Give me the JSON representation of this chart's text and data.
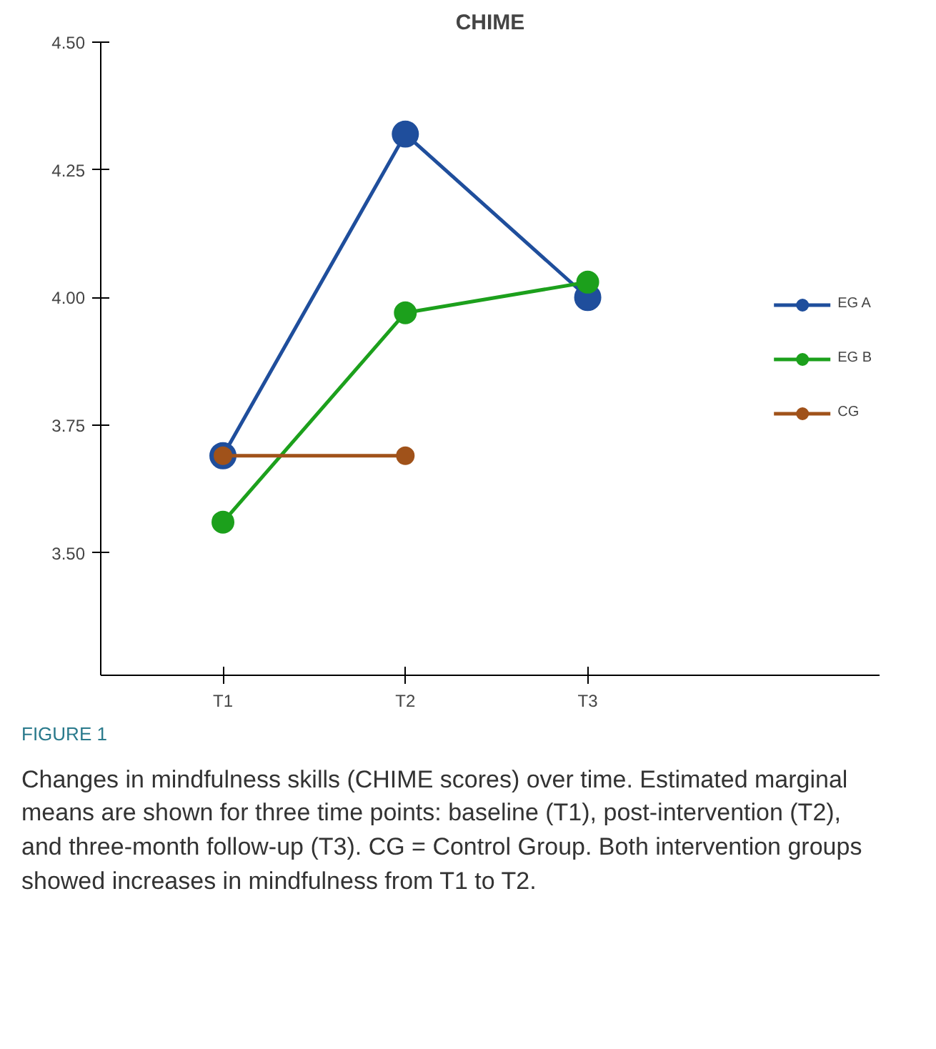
{
  "chart_data": {
    "type": "line",
    "title": "CHIME",
    "categories": [
      "T1",
      "T2",
      "T3"
    ],
    "series": [
      {
        "name": "EG A",
        "color": "#1f4e9c",
        "values": [
          3.69,
          4.32,
          4.0
        ]
      },
      {
        "name": "EG B",
        "color": "#1ca01c",
        "values": [
          3.56,
          3.97,
          4.03
        ]
      },
      {
        "name": "CG",
        "color": "#a0521a",
        "values": [
          3.69,
          3.69,
          null
        ]
      }
    ],
    "ylim": [
      3.26,
      4.5
    ],
    "yticks": [
      {
        "value": 3.5,
        "label": "3.50"
      },
      {
        "value": 3.75,
        "label": "3.75"
      },
      {
        "value": 4.0,
        "label": "4.00"
      },
      {
        "value": 4.25,
        "label": "4.25"
      },
      {
        "value": 4.5,
        "label": "4.50"
      }
    ],
    "marker": "circle",
    "line_style": "solid",
    "grid": false,
    "legend": "right",
    "annotations": [
      "FIGURE 1",
      "Changes in mindfulness skills (CHIME scores) over time. Estimated marginal means are shown for three time points: baseline (T1), post-intervention (T2), and three-month follow-up (T3). CG = Control Group. Both intervention groups showed increases in mindfulness from T1 to T2."
    ]
  }
}
